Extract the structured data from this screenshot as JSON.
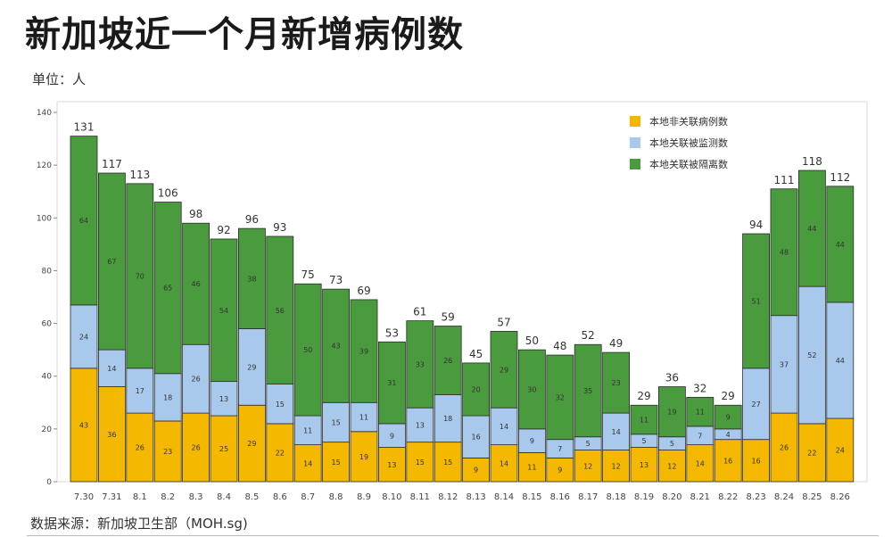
{
  "title": "新加坡近一个月新增病例数",
  "unit_label": "单位：人",
  "source_label": "数据来源：新加坡卫生部（MOH.sg)",
  "chart_data": {
    "type": "bar",
    "stacked": true,
    "categories": [
      "7.30",
      "7.31",
      "8.1",
      "8.2",
      "8.3",
      "8.4",
      "8.5",
      "8.6",
      "8.7",
      "8.8",
      "8.9",
      "8.10",
      "8.11",
      "8.12",
      "8.13",
      "8.14",
      "8.15",
      "8.16",
      "8.17",
      "8.18",
      "8.19",
      "8.20",
      "8.21",
      "8.22",
      "8.23",
      "8.24",
      "8.25",
      "8.26"
    ],
    "series": [
      {
        "name": "本地非关联病例数",
        "color": "#f5b800",
        "values": [
          43,
          36,
          26,
          23,
          26,
          25,
          29,
          22,
          14,
          15,
          19,
          13,
          15,
          15,
          9,
          14,
          11,
          9,
          12,
          12,
          13,
          12,
          14,
          16,
          16,
          26,
          22,
          24
        ]
      },
      {
        "name": "本地关联被监测数",
        "color": "#a8c8ec",
        "values": [
          24,
          14,
          17,
          18,
          26,
          13,
          29,
          15,
          11,
          15,
          11,
          9,
          13,
          18,
          16,
          14,
          9,
          7,
          5,
          14,
          5,
          5,
          7,
          4,
          27,
          37,
          52,
          44
        ]
      },
      {
        "name": "本地关联被隔离数",
        "color": "#4a9a3e",
        "values": [
          64,
          67,
          70,
          65,
          46,
          54,
          38,
          56,
          50,
          43,
          39,
          31,
          33,
          26,
          20,
          29,
          30,
          32,
          35,
          23,
          11,
          19,
          11,
          9,
          51,
          48,
          44,
          44
        ]
      }
    ],
    "totals": [
      131,
      117,
      113,
      106,
      98,
      92,
      96,
      93,
      75,
      73,
      69,
      53,
      61,
      59,
      45,
      57,
      50,
      48,
      52,
      49,
      29,
      36,
      32,
      29,
      94,
      111,
      118,
      112
    ],
    "yticks": [
      0,
      20,
      40,
      60,
      80,
      100,
      120,
      140
    ],
    "ylim": [
      0,
      140
    ],
    "grid": false,
    "legend_position": "top-right"
  }
}
